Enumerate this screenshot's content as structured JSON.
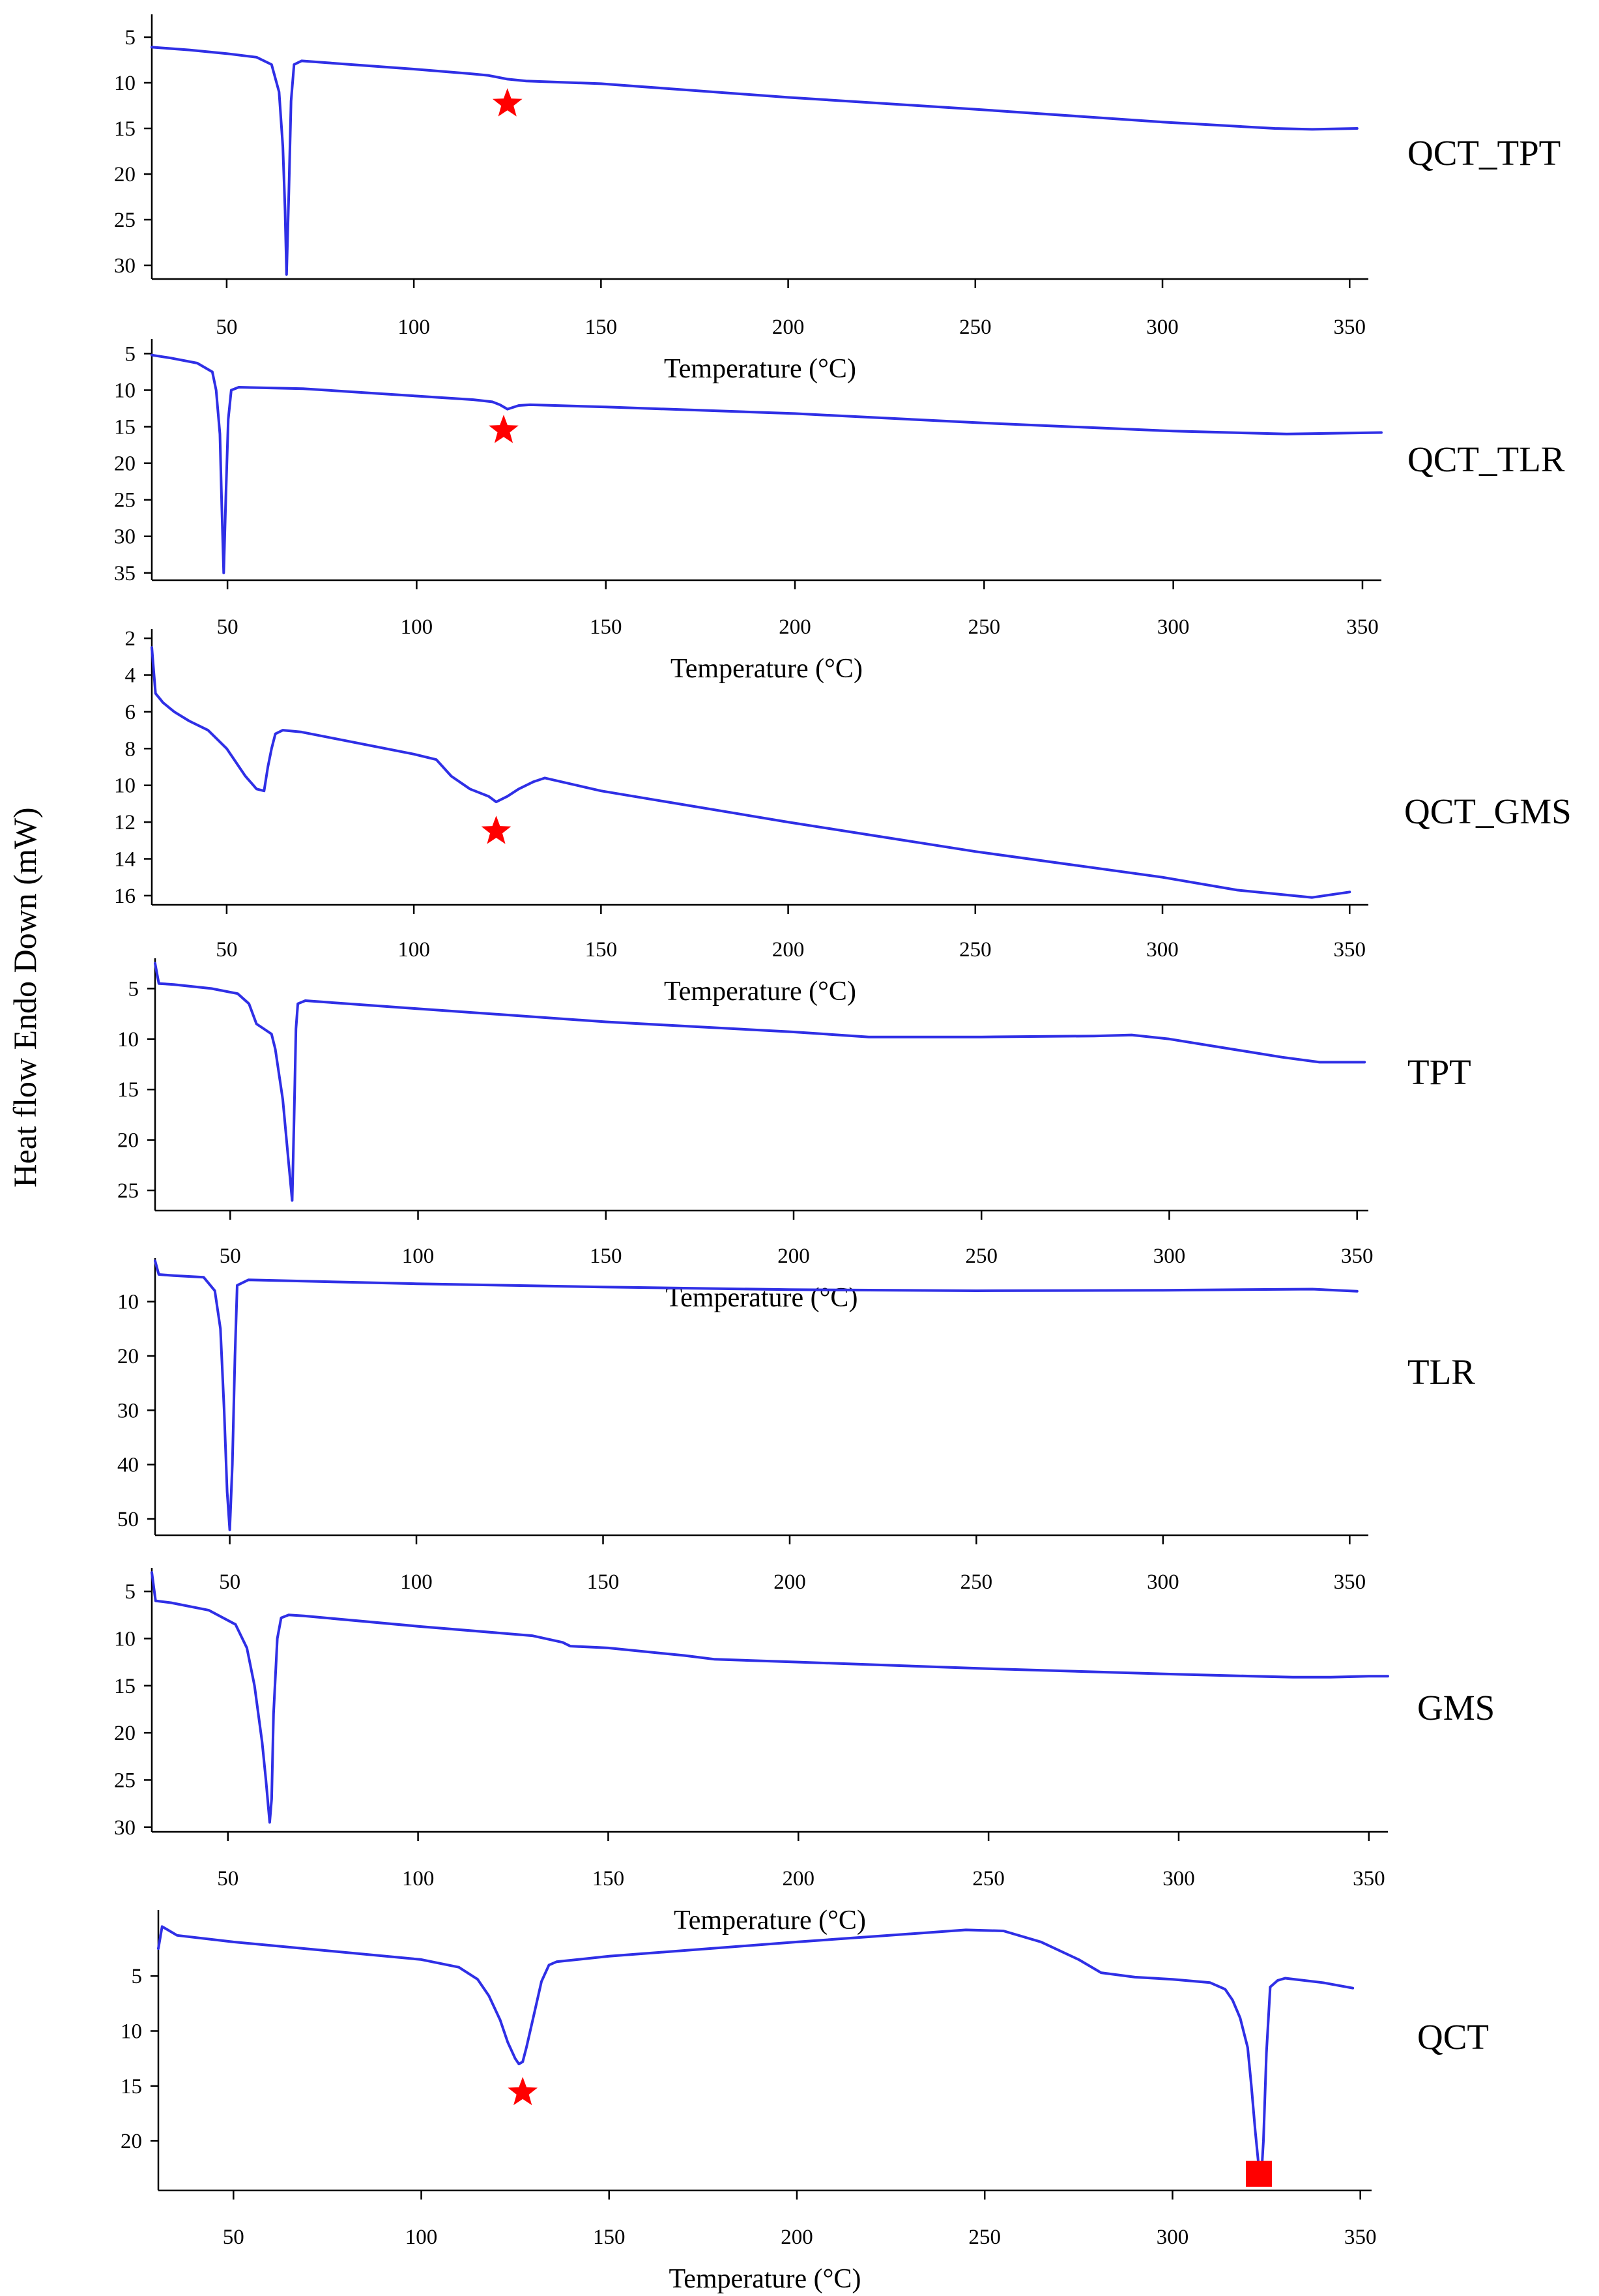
{
  "figure": {
    "ylabel": "Heat flow  Endo Down  (mW)"
  },
  "chart_data": [
    {
      "type": "line",
      "name": "QCT_TPT",
      "panel_label": "QCT_TPT",
      "xlabel": "Temperature (°C)",
      "xlim": [
        30,
        355
      ],
      "ylim": [
        2.5,
        31.5
      ],
      "xticks": [
        50,
        100,
        150,
        200,
        250,
        300,
        350
      ],
      "yticks": [
        5,
        10,
        15,
        20,
        25,
        30
      ],
      "series": [
        {
          "name": "QCT_TPT",
          "x": [
            30,
            40,
            50,
            58,
            62,
            64,
            65,
            65.6,
            66,
            66.6,
            67.2,
            68,
            70,
            100,
            115,
            120,
            125,
            130,
            150,
            200,
            250,
            300,
            330,
            340,
            352
          ],
          "y": [
            6.1,
            6.4,
            6.8,
            7.2,
            8.0,
            11.0,
            17.0,
            24.0,
            31.0,
            22.0,
            12.0,
            8.0,
            7.6,
            8.5,
            9.0,
            9.2,
            9.6,
            9.8,
            10.1,
            11.6,
            12.9,
            14.3,
            15.0,
            15.1,
            15.0
          ]
        }
      ],
      "annotations": [
        {
          "symbol": "star",
          "x": 125,
          "y": 12.3
        }
      ]
    },
    {
      "type": "line",
      "name": "QCT_TLR",
      "panel_label": "QCT_TLR",
      "xlabel": "Temperature (°C)",
      "xlim": [
        30,
        355
      ],
      "ylim": [
        3,
        36
      ],
      "xticks": [
        50,
        100,
        150,
        200,
        250,
        300,
        350
      ],
      "yticks": [
        5,
        10,
        15,
        20,
        25,
        30,
        35
      ],
      "series": [
        {
          "name": "QCT_TLR",
          "x": [
            30,
            35,
            42,
            46,
            47,
            48,
            48.5,
            49,
            49.6,
            50.2,
            51,
            53,
            70,
            100,
            115,
            120,
            122,
            124,
            127,
            130,
            150,
            200,
            250,
            300,
            330,
            355
          ],
          "y": [
            5.2,
            5.6,
            6.3,
            7.5,
            10.0,
            16.0,
            26.0,
            35.0,
            24.0,
            14.0,
            10.0,
            9.6,
            9.8,
            10.8,
            11.3,
            11.6,
            12.0,
            12.6,
            12.1,
            12.0,
            12.3,
            13.2,
            14.5,
            15.6,
            16.0,
            15.8
          ]
        }
      ],
      "annotations": [
        {
          "symbol": "star",
          "x": 123,
          "y": 15.5
        }
      ]
    },
    {
      "type": "line",
      "name": "QCT_GMS",
      "panel_label": "QCT_GMS",
      "xlabel": "Temperature (°C)",
      "xlim": [
        30,
        355
      ],
      "ylim": [
        1.5,
        16.5
      ],
      "xticks": [
        50,
        100,
        150,
        200,
        250,
        300,
        350
      ],
      "yticks": [
        2,
        4,
        6,
        8,
        10,
        12,
        14,
        16
      ],
      "series": [
        {
          "name": "QCT_GMS",
          "x": [
            30,
            31,
            33,
            36,
            40,
            45,
            50,
            55,
            58,
            60,
            61,
            62,
            63,
            65,
            70,
            80,
            100,
            106,
            110,
            115,
            120,
            122,
            125,
            128,
            132,
            135,
            150,
            200,
            250,
            300,
            320,
            340,
            350
          ],
          "y": [
            2.5,
            5.0,
            5.5,
            6.0,
            6.5,
            7.0,
            8.0,
            9.5,
            10.2,
            10.3,
            9.0,
            8.0,
            7.2,
            7.0,
            7.1,
            7.5,
            8.3,
            8.6,
            9.5,
            10.2,
            10.6,
            10.9,
            10.6,
            10.2,
            9.8,
            9.6,
            10.3,
            12.0,
            13.6,
            15.0,
            15.7,
            16.1,
            15.8
          ]
        }
      ],
      "annotations": [
        {
          "symbol": "star",
          "x": 122,
          "y": 12.5
        }
      ]
    },
    {
      "type": "line",
      "name": "TPT",
      "panel_label": "TPT",
      "xlabel": "Temperature (°C)",
      "xlim": [
        30,
        353
      ],
      "ylim": [
        2,
        27
      ],
      "xticks": [
        50,
        100,
        150,
        200,
        250,
        300,
        350
      ],
      "yticks": [
        5,
        10,
        15,
        20,
        25
      ],
      "series": [
        {
          "name": "TPT",
          "x": [
            30,
            31,
            35,
            45,
            52,
            55,
            57,
            59,
            61,
            62,
            64,
            65.5,
            66.5,
            67,
            67.5,
            68,
            70,
            100,
            150,
            200,
            220,
            250,
            280,
            290,
            300,
            310,
            320,
            330,
            340,
            352
          ],
          "y": [
            2.5,
            4.5,
            4.6,
            5.0,
            5.5,
            6.5,
            8.5,
            9.0,
            9.5,
            11.0,
            16.0,
            22.0,
            26.0,
            18.0,
            9.0,
            6.5,
            6.2,
            7.0,
            8.3,
            9.3,
            9.8,
            9.8,
            9.7,
            9.6,
            10.0,
            10.6,
            11.2,
            11.8,
            12.3,
            12.3
          ]
        }
      ],
      "annotations": []
    },
    {
      "type": "line",
      "name": "TLR",
      "panel_label": "TLR",
      "xlabel": "",
      "xlim": [
        30,
        355
      ],
      "ylim": [
        2,
        53
      ],
      "xticks": [
        50,
        100,
        150,
        200,
        250,
        300,
        350
      ],
      "yticks": [
        10,
        20,
        30,
        40,
        50
      ],
      "series": [
        {
          "name": "TLR",
          "x": [
            30,
            31,
            35,
            43,
            46,
            47.5,
            48.5,
            49.3,
            50,
            50.7,
            51.4,
            52,
            55,
            100,
            150,
            200,
            250,
            300,
            340,
            352
          ],
          "y": [
            2.5,
            5.0,
            5.2,
            5.5,
            8.0,
            15.0,
            30.0,
            45.0,
            52.0,
            40.0,
            20.0,
            7.0,
            6.0,
            6.7,
            7.3,
            7.8,
            8.0,
            7.9,
            7.7,
            8.1
          ]
        }
      ],
      "annotations": []
    },
    {
      "type": "line",
      "name": "GMS",
      "panel_label": "GMS",
      "xlabel": "Temperature (°C)",
      "xlim": [
        30,
        355
      ],
      "ylim": [
        2.5,
        30.5
      ],
      "xticks": [
        50,
        100,
        150,
        200,
        250,
        300,
        350
      ],
      "yticks": [
        5,
        10,
        15,
        20,
        25,
        30
      ],
      "series": [
        {
          "name": "GMS",
          "x": [
            30,
            31,
            35,
            45,
            52,
            55,
            57,
            59,
            60,
            61,
            61.5,
            62,
            63,
            64,
            66,
            70,
            100,
            130,
            138,
            140,
            150,
            170,
            178,
            200,
            250,
            300,
            330,
            340,
            350,
            355
          ],
          "y": [
            3.0,
            6.0,
            6.2,
            7.0,
            8.5,
            11.0,
            15.0,
            21.0,
            25.0,
            29.5,
            27.0,
            18.0,
            10.0,
            7.8,
            7.5,
            7.6,
            8.7,
            9.7,
            10.4,
            10.8,
            11.0,
            11.8,
            12.2,
            12.5,
            13.2,
            13.8,
            14.1,
            14.1,
            14.0,
            14.0
          ]
        }
      ],
      "annotations": []
    },
    {
      "type": "line",
      "name": "QCT",
      "panel_label": "QCT",
      "xlabel": "Temperature (°C)",
      "xlim": [
        30,
        353
      ],
      "ylim": [
        -1,
        24.5
      ],
      "xticks": [
        50,
        100,
        150,
        200,
        250,
        300,
        350
      ],
      "yticks": [
        5,
        10,
        15,
        20
      ],
      "series": [
        {
          "name": "QCT",
          "x": [
            30,
            31,
            35,
            50,
            75,
            100,
            110,
            115,
            118,
            121,
            123,
            125,
            126,
            127,
            128,
            130,
            132,
            134,
            136,
            150,
            200,
            245,
            255,
            265,
            275,
            281,
            290,
            300,
            310,
            314,
            316,
            318,
            320,
            321,
            322,
            323,
            323.6,
            324.2,
            325,
            326,
            328,
            330,
            340,
            348
          ],
          "y": [
            2.5,
            0.5,
            1.3,
            1.9,
            2.7,
            3.5,
            4.2,
            5.3,
            6.8,
            9.0,
            11.0,
            12.5,
            13.0,
            12.8,
            11.5,
            8.5,
            5.5,
            4.0,
            3.7,
            3.2,
            1.9,
            0.8,
            0.9,
            1.9,
            3.5,
            4.7,
            5.1,
            5.3,
            5.6,
            6.2,
            7.2,
            8.8,
            11.5,
            15.0,
            19.0,
            22.5,
            23.5,
            20.0,
            12.0,
            6.0,
            5.4,
            5.2,
            5.6,
            6.1
          ]
        }
      ],
      "annotations": [
        {
          "symbol": "star",
          "x": 127,
          "y": 15.6
        },
        {
          "symbol": "square",
          "x": 323,
          "y": 23.0
        }
      ]
    }
  ]
}
